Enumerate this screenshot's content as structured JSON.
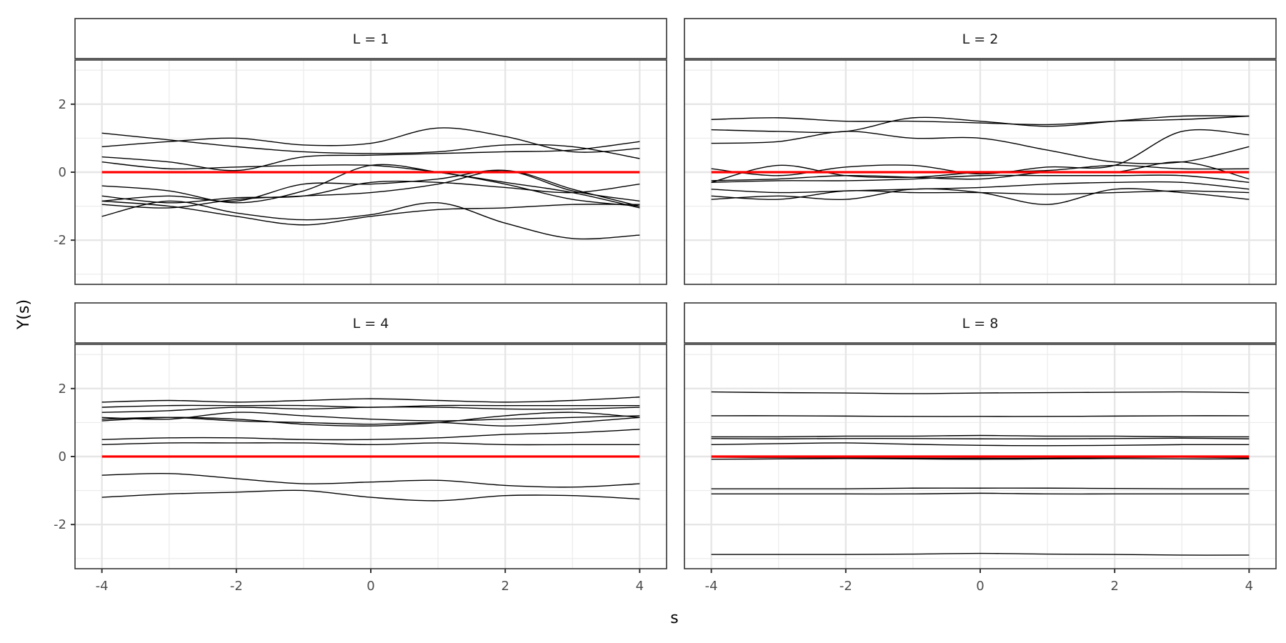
{
  "chart_data": {
    "type": "line",
    "xlabel": "s",
    "ylabel": "Y(s)",
    "xlim": [
      -4.4,
      4.4
    ],
    "ylim": [
      -3.3,
      3.3
    ],
    "x_ticks": [
      -4,
      -2,
      0,
      2,
      4
    ],
    "y_ticks": [
      2,
      0,
      -2
    ],
    "x_tick_labels": [
      "-4",
      "-2",
      "0",
      "2",
      "4"
    ],
    "y_tick_labels": [
      "2",
      "0",
      "-2"
    ],
    "x_minor": [
      -3,
      -1,
      1,
      3
    ],
    "y_minor": [
      -3,
      -1,
      1,
      3
    ],
    "grid": true,
    "x": [
      -4,
      -3,
      -2,
      -1,
      0,
      1,
      2,
      3,
      4
    ],
    "mean_color": "#ff0000",
    "curve_color": "#000000",
    "panels": [
      {
        "label": "L = 1",
        "series": [
          {
            "values": [
              1.15,
              0.95,
              0.75,
              0.6,
              0.55,
              0.6,
              0.8,
              0.75,
              0.4
            ]
          },
          {
            "values": [
              0.75,
              0.9,
              1.0,
              0.8,
              0.85,
              1.3,
              1.05,
              0.6,
              0.7
            ]
          },
          {
            "values": [
              0.45,
              0.3,
              0.05,
              0.45,
              0.5,
              0.55,
              0.6,
              0.65,
              0.9
            ]
          },
          {
            "values": [
              0.3,
              0.1,
              0.15,
              0.2,
              0.2,
              0.0,
              -0.3,
              -0.6,
              -1.05
            ]
          },
          {
            "values": [
              -0.4,
              -0.55,
              -0.9,
              -0.55,
              0.2,
              0.0,
              -0.35,
              -0.8,
              -1.0
            ]
          },
          {
            "values": [
              -0.7,
              -0.9,
              -0.75,
              -0.7,
              -0.3,
              -0.3,
              -0.45,
              -0.6,
              -0.35
            ]
          },
          {
            "values": [
              -0.85,
              -0.7,
              -0.85,
              -0.35,
              -0.35,
              -0.2,
              0.05,
              -0.55,
              -0.85
            ]
          },
          {
            "values": [
              -0.95,
              -1.05,
              -0.8,
              -0.7,
              -0.6,
              -0.35,
              0.05,
              -0.5,
              -1.0
            ]
          },
          {
            "values": [
              -0.85,
              -1.0,
              -1.3,
              -1.55,
              -1.3,
              -1.1,
              -1.05,
              -0.95,
              -0.95
            ]
          },
          {
            "values": [
              -1.3,
              -0.85,
              -1.2,
              -1.4,
              -1.25,
              -0.9,
              -1.5,
              -1.95,
              -1.85
            ]
          }
        ]
      },
      {
        "label": "L = 2",
        "series": [
          {
            "values": [
              1.55,
              1.6,
              1.5,
              1.5,
              1.45,
              1.4,
              1.5,
              1.55,
              1.65
            ]
          },
          {
            "values": [
              1.25,
              1.2,
              1.2,
              1.6,
              1.5,
              1.35,
              1.5,
              1.65,
              1.65
            ]
          },
          {
            "values": [
              0.85,
              0.9,
              1.2,
              1.0,
              1.0,
              0.65,
              0.3,
              0.3,
              0.75
            ]
          },
          {
            "values": [
              0.1,
              -0.1,
              0.15,
              0.2,
              -0.05,
              0.15,
              0.2,
              1.2,
              1.1
            ]
          },
          {
            "values": [
              -0.3,
              0.2,
              -0.1,
              -0.15,
              0.0,
              0.05,
              0.2,
              0.1,
              0.1
            ]
          },
          {
            "values": [
              -0.25,
              -0.2,
              -0.1,
              -0.15,
              -0.2,
              0.0,
              0.0,
              0.3,
              -0.2
            ]
          },
          {
            "values": [
              -0.3,
              -0.25,
              -0.25,
              -0.2,
              -0.1,
              -0.1,
              -0.1,
              -0.1,
              -0.3
            ]
          },
          {
            "values": [
              -0.5,
              -0.6,
              -0.55,
              -0.5,
              -0.45,
              -0.35,
              -0.3,
              -0.3,
              -0.5
            ]
          },
          {
            "values": [
              -0.7,
              -0.8,
              -0.55,
              -0.6,
              -0.6,
              -0.65,
              -0.6,
              -0.55,
              -0.6
            ]
          },
          {
            "values": [
              -0.8,
              -0.7,
              -0.8,
              -0.5,
              -0.6,
              -0.95,
              -0.5,
              -0.6,
              -0.8
            ]
          }
        ]
      },
      {
        "label": "L = 4",
        "series": [
          {
            "values": [
              1.6,
              1.65,
              1.6,
              1.65,
              1.7,
              1.65,
              1.6,
              1.65,
              1.75
            ]
          },
          {
            "values": [
              1.45,
              1.5,
              1.5,
              1.5,
              1.45,
              1.5,
              1.5,
              1.5,
              1.5
            ]
          },
          {
            "values": [
              1.3,
              1.35,
              1.45,
              1.4,
              1.45,
              1.45,
              1.4,
              1.4,
              1.45
            ]
          },
          {
            "values": [
              1.15,
              1.1,
              1.3,
              1.2,
              1.1,
              1.05,
              1.1,
              1.15,
              1.2
            ]
          },
          {
            "values": [
              1.1,
              1.15,
              1.05,
              1.0,
              0.95,
              1.0,
              0.9,
              1.0,
              1.15
            ]
          },
          {
            "values": [
              1.05,
              1.15,
              1.1,
              0.95,
              0.9,
              1.0,
              1.2,
              1.3,
              1.15
            ]
          },
          {
            "values": [
              0.5,
              0.55,
              0.55,
              0.5,
              0.5,
              0.55,
              0.65,
              0.7,
              0.8
            ]
          },
          {
            "values": [
              0.35,
              0.4,
              0.4,
              0.4,
              0.35,
              0.4,
              0.35,
              0.35,
              0.35
            ]
          },
          {
            "values": [
              -0.55,
              -0.5,
              -0.65,
              -0.8,
              -0.75,
              -0.7,
              -0.85,
              -0.9,
              -0.8
            ]
          },
          {
            "values": [
              -1.2,
              -1.1,
              -1.05,
              -1.0,
              -1.2,
              -1.3,
              -1.15,
              -1.15,
              -1.25
            ]
          }
        ]
      },
      {
        "label": "L = 8",
        "series": [
          {
            "values": [
              1.9,
              1.88,
              1.87,
              1.85,
              1.87,
              1.88,
              1.89,
              1.9,
              1.88
            ]
          },
          {
            "values": [
              1.2,
              1.2,
              1.19,
              1.18,
              1.18,
              1.18,
              1.19,
              1.2,
              1.2
            ]
          },
          {
            "values": [
              0.58,
              0.58,
              0.6,
              0.6,
              0.62,
              0.6,
              0.6,
              0.58,
              0.58
            ]
          },
          {
            "values": [
              0.53,
              0.52,
              0.53,
              0.53,
              0.52,
              0.52,
              0.53,
              0.54,
              0.52
            ]
          },
          {
            "values": [
              0.35,
              0.38,
              0.4,
              0.36,
              0.33,
              0.32,
              0.33,
              0.35,
              0.35
            ]
          },
          {
            "values": [
              -0.02,
              -0.03,
              -0.04,
              -0.05,
              -0.05,
              -0.05,
              -0.03,
              -0.02,
              -0.04
            ]
          },
          {
            "values": [
              -0.08,
              -0.07,
              -0.06,
              -0.07,
              -0.08,
              -0.07,
              -0.06,
              -0.07,
              -0.07
            ]
          },
          {
            "values": [
              -0.95,
              -0.95,
              -0.95,
              -0.93,
              -0.93,
              -0.93,
              -0.94,
              -0.95,
              -0.95
            ]
          },
          {
            "values": [
              -1.1,
              -1.1,
              -1.1,
              -1.1,
              -1.08,
              -1.1,
              -1.1,
              -1.1,
              -1.1
            ]
          },
          {
            "values": [
              -2.88,
              -2.88,
              -2.88,
              -2.87,
              -2.85,
              -2.87,
              -2.88,
              -2.9,
              -2.9
            ]
          }
        ]
      }
    ]
  }
}
